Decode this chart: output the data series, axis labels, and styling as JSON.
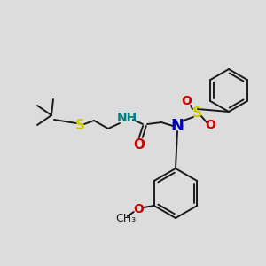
{
  "bg_color": "#dcdcdc",
  "bond_color": "#1a1a1a",
  "S_color": "#cccc00",
  "N_color": "#0000cc",
  "NH_color": "#008080",
  "O_color": "#cc0000",
  "C_color": "#1a1a1a",
  "font_size": 10,
  "small_font_size": 9,
  "lw": 1.4,
  "figsize": [
    3.0,
    3.0
  ],
  "dpi": 100,
  "xlim": [
    0,
    300
  ],
  "ylim": [
    0,
    300
  ]
}
